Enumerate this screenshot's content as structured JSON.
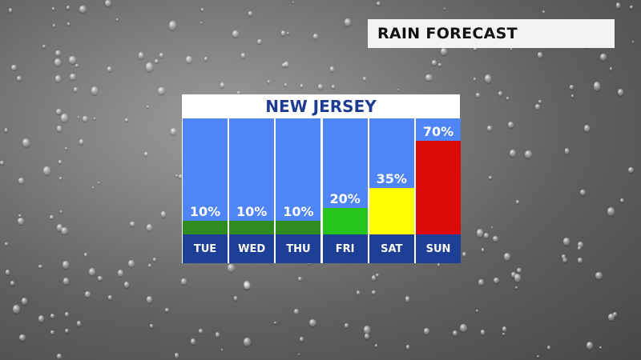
{
  "title_badge": "RAIN FORECAST",
  "chart_data": {
    "type": "bar",
    "title": "NEW JERSEY",
    "categories": [
      "TUE",
      "WED",
      "THU",
      "FRI",
      "SAT",
      "SUN"
    ],
    "values": [
      10,
      10,
      10,
      20,
      35,
      70
    ],
    "value_labels": [
      "10%",
      "10%",
      "10%",
      "20%",
      "35%",
      "70%"
    ],
    "ylim": [
      0,
      100
    ],
    "bar_colors": [
      "#2e8b1e",
      "#2e8b1e",
      "#2e8b1e",
      "#27c51b",
      "#ffff00",
      "#dd0a0a"
    ],
    "column_background": "#4f85f4",
    "label_band_color": "#1e3f96"
  }
}
